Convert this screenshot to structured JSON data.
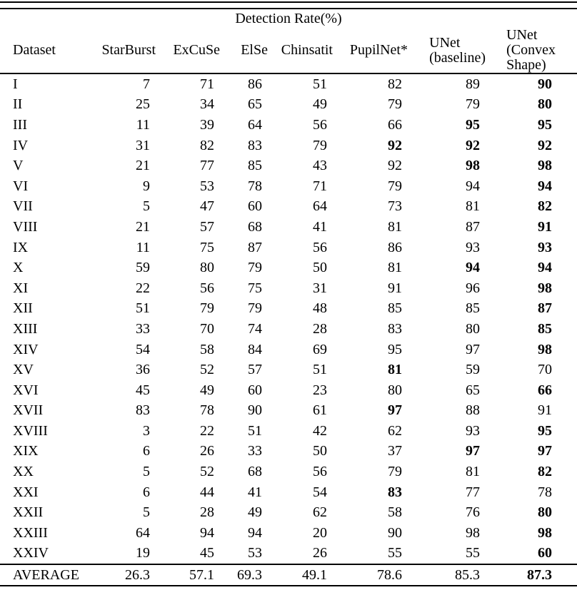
{
  "table": {
    "span_header": "Detection Rate(%)",
    "columns": [
      {
        "id": "dataset",
        "lines": [
          "Dataset"
        ]
      },
      {
        "id": "starburst",
        "lines": [
          "StarBurst"
        ]
      },
      {
        "id": "excuse",
        "lines": [
          "ExCuSe"
        ]
      },
      {
        "id": "else",
        "lines": [
          "ElSe"
        ]
      },
      {
        "id": "chinsatit",
        "lines": [
          "Chinsatit"
        ]
      },
      {
        "id": "pupilnet",
        "lines": [
          "PupilNet*"
        ]
      },
      {
        "id": "unet-baseline",
        "lines": [
          "UNet",
          "(baseline)"
        ]
      },
      {
        "id": "unet-convex",
        "lines": [
          "UNet",
          "(Convex",
          "Shape)"
        ]
      }
    ],
    "rows": [
      {
        "dataset": "I",
        "values": [
          "7",
          "71",
          "86",
          "51",
          "82",
          "89",
          "90"
        ],
        "bold": [
          6
        ]
      },
      {
        "dataset": "II",
        "values": [
          "25",
          "34",
          "65",
          "49",
          "79",
          "79",
          "80"
        ],
        "bold": [
          6
        ]
      },
      {
        "dataset": "III",
        "values": [
          "11",
          "39",
          "64",
          "56",
          "66",
          "95",
          "95"
        ],
        "bold": [
          5,
          6
        ]
      },
      {
        "dataset": "IV",
        "values": [
          "31",
          "82",
          "83",
          "79",
          "92",
          "92",
          "92"
        ],
        "bold": [
          4,
          5,
          6
        ]
      },
      {
        "dataset": "V",
        "values": [
          "21",
          "77",
          "85",
          "43",
          "92",
          "98",
          "98"
        ],
        "bold": [
          5,
          6
        ]
      },
      {
        "dataset": "VI",
        "values": [
          "9",
          "53",
          "78",
          "71",
          "79",
          "94",
          "94"
        ],
        "bold": [
          6
        ]
      },
      {
        "dataset": "VII",
        "values": [
          "5",
          "47",
          "60",
          "64",
          "73",
          "81",
          "82"
        ],
        "bold": [
          6
        ]
      },
      {
        "dataset": "VIII",
        "values": [
          "21",
          "57",
          "68",
          "41",
          "81",
          "87",
          "91"
        ],
        "bold": [
          6
        ]
      },
      {
        "dataset": "IX",
        "values": [
          "11",
          "75",
          "87",
          "56",
          "86",
          "93",
          "93"
        ],
        "bold": [
          6
        ]
      },
      {
        "dataset": "X",
        "values": [
          "59",
          "80",
          "79",
          "50",
          "81",
          "94",
          "94"
        ],
        "bold": [
          5,
          6
        ]
      },
      {
        "dataset": "XI",
        "values": [
          "22",
          "56",
          "75",
          "31",
          "91",
          "96",
          "98"
        ],
        "bold": [
          6
        ]
      },
      {
        "dataset": "XII",
        "values": [
          "51",
          "79",
          "79",
          "48",
          "85",
          "85",
          "87"
        ],
        "bold": [
          6
        ]
      },
      {
        "dataset": "XIII",
        "values": [
          "33",
          "70",
          "74",
          "28",
          "83",
          "80",
          "85"
        ],
        "bold": [
          6
        ]
      },
      {
        "dataset": "XIV",
        "values": [
          "54",
          "58",
          "84",
          "69",
          "95",
          "97",
          "98"
        ],
        "bold": [
          6
        ]
      },
      {
        "dataset": "XV",
        "values": [
          "36",
          "52",
          "57",
          "51",
          "81",
          "59",
          "70"
        ],
        "bold": [
          4
        ]
      },
      {
        "dataset": "XVI",
        "values": [
          "45",
          "49",
          "60",
          "23",
          "80",
          "65",
          "66"
        ],
        "bold": [
          6
        ]
      },
      {
        "dataset": "XVII",
        "values": [
          "83",
          "78",
          "90",
          "61",
          "97",
          "88",
          "91"
        ],
        "bold": [
          4
        ]
      },
      {
        "dataset": "XVIII",
        "values": [
          "3",
          "22",
          "51",
          "42",
          "62",
          "93",
          "95"
        ],
        "bold": [
          6
        ]
      },
      {
        "dataset": "XIX",
        "values": [
          "6",
          "26",
          "33",
          "50",
          "37",
          "97",
          "97"
        ],
        "bold": [
          5,
          6
        ]
      },
      {
        "dataset": "XX",
        "values": [
          "5",
          "52",
          "68",
          "56",
          "79",
          "81",
          "82"
        ],
        "bold": [
          6
        ]
      },
      {
        "dataset": "XXI",
        "values": [
          "6",
          "44",
          "41",
          "54",
          "83",
          "77",
          "78"
        ],
        "bold": [
          4
        ]
      },
      {
        "dataset": "XXII",
        "values": [
          "5",
          "28",
          "49",
          "62",
          "58",
          "76",
          "80"
        ],
        "bold": [
          6
        ]
      },
      {
        "dataset": "XXIII",
        "values": [
          "64",
          "94",
          "94",
          "20",
          "90",
          "98",
          "98"
        ],
        "bold": [
          6
        ]
      },
      {
        "dataset": "XXIV",
        "values": [
          "19",
          "45",
          "53",
          "26",
          "55",
          "55",
          "60"
        ],
        "bold": [
          6
        ]
      },
      {
        "dataset": "AVERAGE",
        "values": [
          "26.3",
          "57.1",
          "69.3",
          "49.1",
          "78.6",
          "85.3",
          "87.3"
        ],
        "bold": [
          6
        ],
        "summary": true
      }
    ]
  }
}
